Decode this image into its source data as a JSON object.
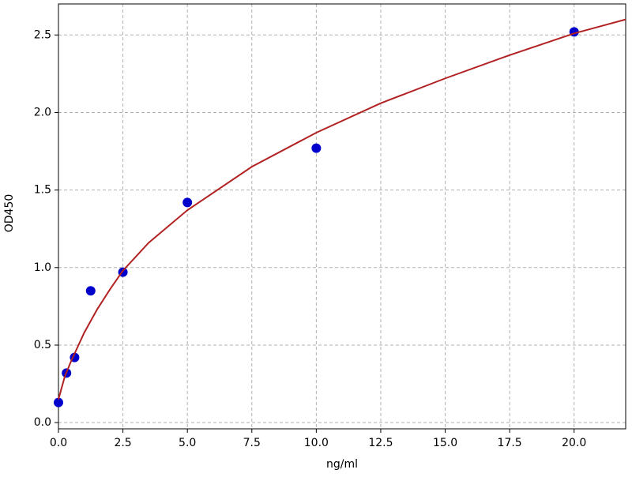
{
  "chart_data": {
    "type": "scatter",
    "x_label": "ng/ml",
    "y_label": "OD450",
    "xlim": [
      0,
      22
    ],
    "ylim": [
      -0.04,
      2.7
    ],
    "xticks": [
      {
        "value": 0,
        "label": "0.0"
      },
      {
        "value": 2.5,
        "label": "2.5"
      },
      {
        "value": 5,
        "label": "5.0"
      },
      {
        "value": 7.5,
        "label": "7.5"
      },
      {
        "value": 10,
        "label": "10.0"
      },
      {
        "value": 12.5,
        "label": "12.5"
      },
      {
        "value": 15,
        "label": "15.0"
      },
      {
        "value": 17.5,
        "label": "17.5"
      },
      {
        "value": 20,
        "label": "20.0"
      }
    ],
    "yticks": [
      {
        "value": 0,
        "label": "0.0"
      },
      {
        "value": 0.5,
        "label": "0.5"
      },
      {
        "value": 1,
        "label": "1.0"
      },
      {
        "value": 1.5,
        "label": "1.5"
      },
      {
        "value": 2,
        "label": "2.0"
      },
      {
        "value": 2.5,
        "label": "2.5"
      }
    ],
    "grid": true,
    "series": [
      {
        "mode": "markers",
        "color": "#0000cc",
        "x": [
          0,
          0.3125,
          0.625,
          1.25,
          2.5,
          5,
          10,
          20
        ],
        "values": [
          0.13,
          0.32,
          0.42,
          0.85,
          0.97,
          1.42,
          1.77,
          2.52
        ]
      },
      {
        "mode": "line",
        "color": "#b22222",
        "x": [
          0,
          0.25,
          0.5,
          1,
          1.5,
          2,
          2.5,
          3.5,
          5,
          7.5,
          10,
          12.5,
          15,
          17.5,
          20,
          22
        ],
        "values": [
          0.15,
          0.3,
          0.4,
          0.58,
          0.73,
          0.86,
          0.98,
          1.16,
          1.37,
          1.65,
          1.87,
          2.06,
          2.22,
          2.37,
          2.51,
          2.6
        ]
      }
    ]
  }
}
